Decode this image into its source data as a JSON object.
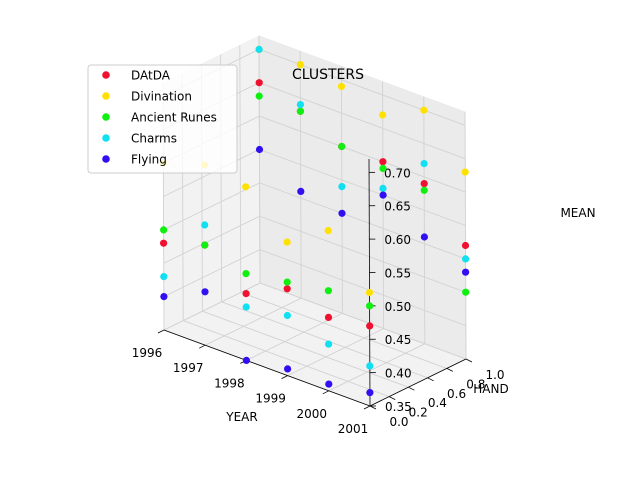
{
  "chart_data": {
    "type": "scatter",
    "projection": "3d",
    "title": "CLUSTERS",
    "xlabel": "YEAR",
    "ylabel": "HAND",
    "zlabel": "MEAN",
    "xlim": [
      1996,
      2001
    ],
    "ylim": [
      0.0,
      1.0
    ],
    "zlim": [
      0.35,
      0.72
    ],
    "xticks": [
      "1996",
      "1997",
      "1998",
      "1999",
      "2000",
      "2001"
    ],
    "yticks": [
      "0.0",
      "0.2",
      "0.4",
      "0.6",
      "0.8",
      "1.0"
    ],
    "zticks": [
      "0.35",
      "0.40",
      "0.45",
      "0.50",
      "0.55",
      "0.60",
      "0.65",
      "0.70"
    ],
    "grid": true,
    "legend_position": "upper-left",
    "series": [
      {
        "name": "DAtDA",
        "color": "#f0102f",
        "points": [
          {
            "x": 1996,
            "y": 0,
            "z": 0.48
          },
          {
            "x": 1996,
            "y": 1,
            "z": 0.65
          },
          {
            "x": 1997,
            "y": 0,
            "z": 0.5
          },
          {
            "x": 1997,
            "y": 1,
            "z": 0.63
          },
          {
            "x": 1998,
            "y": 0,
            "z": 0.45
          },
          {
            "x": 1998,
            "y": 1,
            "z": 0.6
          },
          {
            "x": 1999,
            "y": 0,
            "z": 0.48
          },
          {
            "x": 1999,
            "y": 1,
            "z": 0.6
          },
          {
            "x": 2000,
            "y": 0,
            "z": 0.46
          },
          {
            "x": 2000,
            "y": 1,
            "z": 0.59
          },
          {
            "x": 2001,
            "y": 0,
            "z": 0.47
          },
          {
            "x": 2001,
            "y": 1,
            "z": 0.52
          }
        ]
      },
      {
        "name": "Divination",
        "color": "#ffe100",
        "points": [
          {
            "x": 1996,
            "y": 0,
            "z": 0.6
          },
          {
            "x": 1996,
            "y": 1,
            "z": 0.7
          },
          {
            "x": 1997,
            "y": 0,
            "z": 0.62
          },
          {
            "x": 1997,
            "y": 1,
            "z": 0.7
          },
          {
            "x": 1998,
            "y": 0,
            "z": 0.61
          },
          {
            "x": 1998,
            "y": 1,
            "z": 0.69
          },
          {
            "x": 1999,
            "y": 0,
            "z": 0.55
          },
          {
            "x": 1999,
            "y": 1,
            "z": 0.67
          },
          {
            "x": 2000,
            "y": 0,
            "z": 0.59
          },
          {
            "x": 2000,
            "y": 1,
            "z": 0.7
          },
          {
            "x": 2001,
            "y": 0,
            "z": 0.52
          },
          {
            "x": 2001,
            "y": 1,
            "z": 0.63
          }
        ]
      },
      {
        "name": "Ancient Runes",
        "color": "#10f010",
        "points": [
          {
            "x": 1996,
            "y": 0,
            "z": 0.5
          },
          {
            "x": 1996,
            "y": 1,
            "z": 0.63
          },
          {
            "x": 1997,
            "y": 0,
            "z": 0.5
          },
          {
            "x": 1997,
            "y": 1,
            "z": 0.63
          },
          {
            "x": 1998,
            "y": 0,
            "z": 0.48
          },
          {
            "x": 1998,
            "y": 1,
            "z": 0.6
          },
          {
            "x": 1999,
            "y": 0,
            "z": 0.49
          },
          {
            "x": 1999,
            "y": 1,
            "z": 0.59
          },
          {
            "x": 2000,
            "y": 0,
            "z": 0.5
          },
          {
            "x": 2000,
            "y": 1,
            "z": 0.58
          },
          {
            "x": 2001,
            "y": 0,
            "z": 0.5
          },
          {
            "x": 2001,
            "y": 1,
            "z": 0.45
          }
        ]
      },
      {
        "name": "Charms",
        "color": "#10e0f0",
        "points": [
          {
            "x": 1996,
            "y": 0,
            "z": 0.43
          },
          {
            "x": 1996,
            "y": 1,
            "z": 0.7
          },
          {
            "x": 1997,
            "y": 0,
            "z": 0.53
          },
          {
            "x": 1997,
            "y": 1,
            "z": 0.64
          },
          {
            "x": 1998,
            "y": 0,
            "z": 0.43
          },
          {
            "x": 1998,
            "y": 1,
            "z": 0.54
          },
          {
            "x": 1999,
            "y": 0,
            "z": 0.44
          },
          {
            "x": 1999,
            "y": 1,
            "z": 0.56
          },
          {
            "x": 2000,
            "y": 0,
            "z": 0.42
          },
          {
            "x": 2000,
            "y": 1,
            "z": 0.62
          },
          {
            "x": 2001,
            "y": 0,
            "z": 0.41
          },
          {
            "x": 2001,
            "y": 1,
            "z": 0.5
          }
        ]
      },
      {
        "name": "Flying",
        "color": "#3010f0",
        "points": [
          {
            "x": 1996,
            "y": 0,
            "z": 0.4
          },
          {
            "x": 1996,
            "y": 1,
            "z": 0.55
          },
          {
            "x": 1997,
            "y": 0,
            "z": 0.43
          },
          {
            "x": 1997,
            "y": 1,
            "z": 0.51
          },
          {
            "x": 1998,
            "y": 0,
            "z": 0.35
          },
          {
            "x": 1998,
            "y": 1,
            "z": 0.5
          },
          {
            "x": 1999,
            "y": 0,
            "z": 0.36
          },
          {
            "x": 1999,
            "y": 1,
            "z": 0.55
          },
          {
            "x": 2000,
            "y": 0,
            "z": 0.36
          },
          {
            "x": 2000,
            "y": 1,
            "z": 0.51
          },
          {
            "x": 2001,
            "y": 0,
            "z": 0.37
          },
          {
            "x": 2001,
            "y": 1,
            "z": 0.48
          }
        ]
      }
    ]
  }
}
